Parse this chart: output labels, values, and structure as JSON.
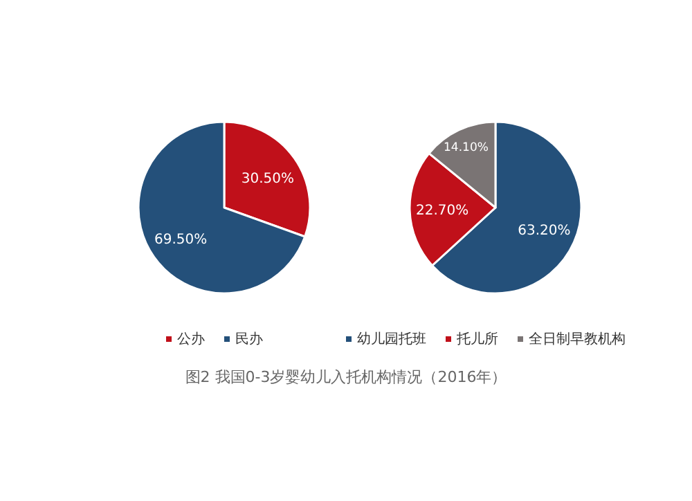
{
  "chart_data": [
    {
      "type": "pie",
      "categories": [
        "公办",
        "民办"
      ],
      "values": [
        30.5,
        69.5
      ],
      "colors": [
        "#c0101a",
        "#24507a"
      ],
      "value_labels": [
        "30.50%",
        "69.50%"
      ],
      "legend": "bottom",
      "annotations": [
        "图2  我国0-3岁婴幼儿入托机构情况（2016年）"
      ]
    },
    {
      "type": "pie",
      "categories": [
        "幼儿园托班",
        "托儿所",
        "全日制早教机构"
      ],
      "values": [
        63.2,
        22.7,
        14.1
      ],
      "colors": [
        "#24507a",
        "#c0101a",
        "#7a7474"
      ],
      "value_labels": [
        "63.20%",
        "22.70%",
        "14.10%"
      ],
      "legend": "bottom"
    }
  ]
}
